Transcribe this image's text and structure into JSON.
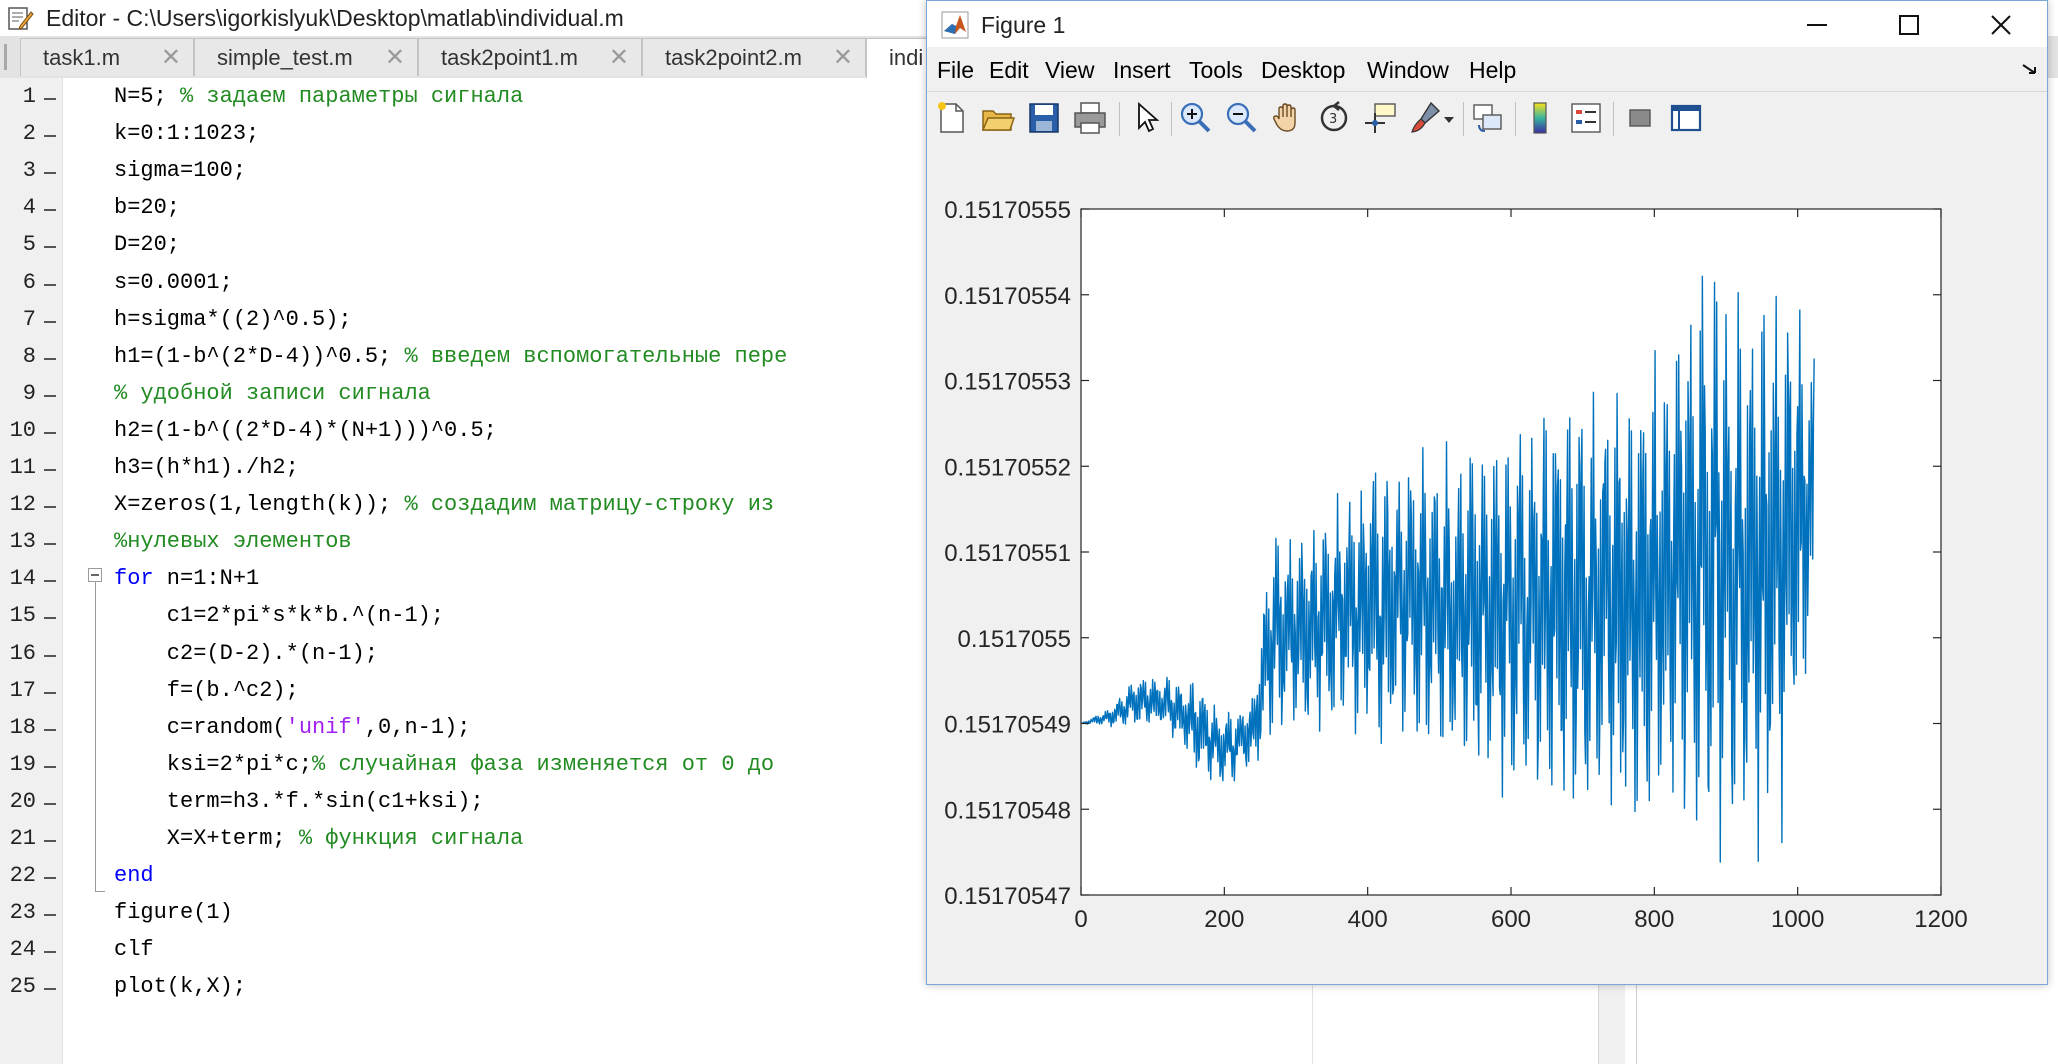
{
  "editor": {
    "title": "Editor - C:\\Users\\igorkislyuk\\Desktop\\matlab\\individual.m",
    "tabs": [
      {
        "label": "task1.m",
        "close": "✕"
      },
      {
        "label": "simple_test.m",
        "close": "✕"
      },
      {
        "label": "task2point1.m",
        "close": "✕"
      },
      {
        "label": "task2point2.m",
        "close": "✕"
      },
      {
        "label": "indi",
        "close": ""
      }
    ],
    "line_numbers": [
      "1",
      "2",
      "3",
      "4",
      "5",
      "6",
      "7",
      "8",
      "9",
      "10",
      "11",
      "12",
      "13",
      "14",
      "15",
      "16",
      "17",
      "18",
      "19",
      "20",
      "21",
      "22",
      "23",
      "24",
      "25"
    ],
    "lines": [
      [
        {
          "t": "N=5; ",
          "k": "n"
        },
        {
          "t": "% задаем параметры сигнала",
          "k": "cm"
        }
      ],
      [
        {
          "t": "k=0:1:1023;",
          "k": "n"
        }
      ],
      [
        {
          "t": "sigma=100;",
          "k": "n"
        }
      ],
      [
        {
          "t": "b=20;",
          "k": "n"
        }
      ],
      [
        {
          "t": "D=20;",
          "k": "n"
        }
      ],
      [
        {
          "t": "s=0.0001;",
          "k": "n"
        }
      ],
      [
        {
          "t": "h=sigma*((2)^0.5);",
          "k": "n"
        }
      ],
      [
        {
          "t": "h1=(1-b^(2*D-4))^0.5; ",
          "k": "n"
        },
        {
          "t": "% введем вспомогательные пере",
          "k": "cm"
        }
      ],
      [
        {
          "t": "% удобной записи сигнала",
          "k": "cm"
        }
      ],
      [
        {
          "t": "h2=(1-b^((2*D-4)*(N+1)))^0.5;",
          "k": "n"
        }
      ],
      [
        {
          "t": "h3=(h*h1)./h2;",
          "k": "n"
        }
      ],
      [
        {
          "t": "X=zeros(1,length(k)); ",
          "k": "n"
        },
        {
          "t": "% создадим матрицу-строку из",
          "k": "cm"
        }
      ],
      [
        {
          "t": "%нулевых элементов",
          "k": "cm"
        }
      ],
      [
        {
          "t": "for",
          "k": "kw"
        },
        {
          "t": " n=1:N+1",
          "k": "n"
        }
      ],
      [
        {
          "t": "    c1=2*pi*s*k*b.^(n-1);",
          "k": "n"
        }
      ],
      [
        {
          "t": "    c2=(D-2).*(n-1);",
          "k": "n"
        }
      ],
      [
        {
          "t": "    f=(b.^c2);",
          "k": "n"
        }
      ],
      [
        {
          "t": "    c=random(",
          "k": "n"
        },
        {
          "t": "'unif'",
          "k": "st"
        },
        {
          "t": ",0,n-1);",
          "k": "n"
        }
      ],
      [
        {
          "t": "    ksi=2*pi*c;",
          "k": "n"
        },
        {
          "t": "% случайная фаза изменяется от 0 до",
          "k": "cm"
        }
      ],
      [
        {
          "t": "    term=h3.*f.*sin(c1+ksi);",
          "k": "n"
        }
      ],
      [
        {
          "t": "    X=X+term; ",
          "k": "n"
        },
        {
          "t": "% функция сигнала",
          "k": "cm"
        }
      ],
      [
        {
          "t": "end",
          "k": "kw"
        }
      ],
      [
        {
          "t": "figure(1)",
          "k": "n"
        }
      ],
      [
        {
          "t": "clf",
          "k": "n"
        }
      ],
      [
        {
          "t": "plot(k,X);",
          "k": "n"
        }
      ]
    ]
  },
  "figure": {
    "title": "Figure 1",
    "menus": [
      "File",
      "Edit",
      "View",
      "Insert",
      "Tools",
      "Desktop",
      "Window",
      "Help"
    ],
    "toolbar_icons": [
      "new-figure-icon",
      "open-file-icon",
      "save-icon",
      "print-icon",
      "pointer-icon",
      "zoom-in-icon",
      "zoom-out-icon",
      "pan-hand-icon",
      "rotate-3d-icon",
      "data-cursor-icon",
      "brush-icon",
      "link-plot-icon",
      "colorbar-icon",
      "legend-icon",
      "hide-plot-tools-icon",
      "show-plot-tools-icon"
    ]
  },
  "chart_data": {
    "type": "line",
    "title": "",
    "xlabel": "",
    "ylabel": "",
    "xlim": [
      0,
      1200
    ],
    "ylim": [
      0.15170547,
      0.15170555
    ],
    "x_ticks": [
      "0",
      "200",
      "400",
      "600",
      "800",
      "1000",
      "1200"
    ],
    "y_ticks": [
      "0.15170547",
      "0.15170548",
      "0.15170549",
      "0.1517055",
      "0.15170551",
      "0.15170552",
      "0.15170553",
      "0.15170554",
      "0.15170555"
    ],
    "color": "#0072bd",
    "x_range": [
      0,
      1023
    ],
    "envelope": [
      {
        "x": 0,
        "min": 0.15170549,
        "max": 0.15170549
      },
      {
        "x": 40,
        "min": 0.1517054895,
        "max": 0.151705492
      },
      {
        "x": 80,
        "min": 0.1517054893,
        "max": 0.1517054962
      },
      {
        "x": 120,
        "min": 0.151705489,
        "max": 0.1517054958
      },
      {
        "x": 160,
        "min": 0.1517054838,
        "max": 0.1517054956
      },
      {
        "x": 200,
        "min": 0.1517054822,
        "max": 0.1517054915
      },
      {
        "x": 240,
        "min": 0.1517054848,
        "max": 0.1517054935
      },
      {
        "x": 265,
        "min": 0.1517054865,
        "max": 0.1517055128
      },
      {
        "x": 320,
        "min": 0.1517054885,
        "max": 0.1517055135
      },
      {
        "x": 400,
        "min": 0.151705486,
        "max": 0.1517055225
      },
      {
        "x": 500,
        "min": 0.1517054848,
        "max": 0.1517055235
      },
      {
        "x": 560,
        "min": 0.151705479,
        "max": 0.1517055265
      },
      {
        "x": 660,
        "min": 0.151705478,
        "max": 0.1517055305
      },
      {
        "x": 760,
        "min": 0.151705476,
        "max": 0.1517055318
      },
      {
        "x": 820,
        "min": 0.151705474,
        "max": 0.151705542
      },
      {
        "x": 880,
        "min": 0.151705473,
        "max": 0.151705547
      },
      {
        "x": 930,
        "min": 0.151705471,
        "max": 0.151705543
      },
      {
        "x": 980,
        "min": 0.151705475,
        "max": 0.151705545
      },
      {
        "x": 1023,
        "min": 0.151705496,
        "max": 0.151705538
      }
    ]
  }
}
